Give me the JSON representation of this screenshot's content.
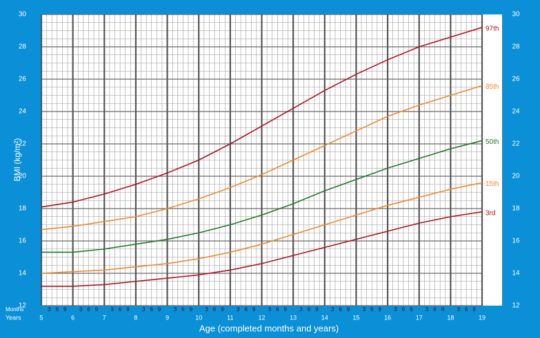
{
  "chart_data": {
    "type": "line",
    "x_label": "Age (completed months and years)",
    "y_label": "BMI (kg/m²)",
    "months_label": "Months",
    "years_label": "Years",
    "month_labels": [
      "3",
      "6",
      "9"
    ],
    "x": [
      5,
      6,
      7,
      8,
      9,
      10,
      11,
      12,
      13,
      14,
      15,
      16,
      17,
      18,
      19
    ],
    "xlim": [
      5,
      19
    ],
    "xticks": [
      5,
      6,
      7,
      8,
      9,
      10,
      11,
      12,
      13,
      14,
      15,
      16,
      17,
      18,
      19
    ],
    "ylim": [
      12,
      30
    ],
    "yticks": [
      12,
      14,
      16,
      18,
      20,
      22,
      24,
      26,
      28,
      30
    ],
    "grid": true,
    "series": [
      {
        "name": "97th",
        "color": "#b3121d",
        "values": [
          18.1,
          18.4,
          18.9,
          19.5,
          20.2,
          21.0,
          22.0,
          23.1,
          24.2,
          25.3,
          26.3,
          27.2,
          28.0,
          28.6,
          29.2
        ]
      },
      {
        "name": "85th",
        "color": "#f08a2a",
        "values": [
          16.7,
          16.9,
          17.2,
          17.5,
          18.0,
          18.6,
          19.3,
          20.1,
          21.0,
          21.9,
          22.8,
          23.7,
          24.4,
          25.0,
          25.6
        ]
      },
      {
        "name": "50th",
        "color": "#217a26",
        "values": [
          15.3,
          15.3,
          15.5,
          15.8,
          16.1,
          16.5,
          17.0,
          17.6,
          18.3,
          19.1,
          19.8,
          20.5,
          21.1,
          21.7,
          22.2
        ]
      },
      {
        "name": "15th",
        "color": "#f08a2a",
        "values": [
          14.0,
          14.1,
          14.2,
          14.4,
          14.6,
          14.9,
          15.3,
          15.8,
          16.4,
          17.0,
          17.6,
          18.2,
          18.7,
          19.2,
          19.6
        ]
      },
      {
        "name": "3rd",
        "color": "#b3121d",
        "values": [
          13.2,
          13.2,
          13.3,
          13.5,
          13.7,
          13.9,
          14.2,
          14.6,
          15.1,
          15.6,
          16.1,
          16.6,
          17.1,
          17.5,
          17.8
        ]
      }
    ]
  }
}
